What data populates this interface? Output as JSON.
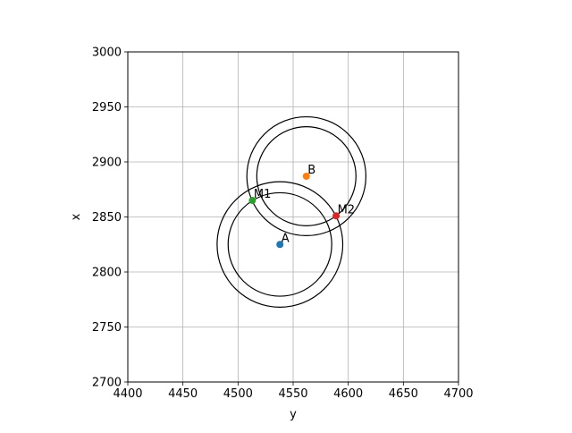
{
  "chart_data": {
    "type": "scatter",
    "title": "",
    "xlabel": "y",
    "ylabel": "x",
    "xlim": [
      4400,
      4700
    ],
    "ylim": [
      2700,
      3000
    ],
    "grid": true,
    "x_ticks": [
      4400,
      4450,
      4500,
      4550,
      4600,
      4650,
      4700
    ],
    "y_ticks": [
      2700,
      2750,
      2800,
      2850,
      2900,
      2950,
      3000
    ],
    "points": [
      {
        "label": "A",
        "x": 4538,
        "y": 2825,
        "color": "#1f77b4"
      },
      {
        "label": "B",
        "x": 4562,
        "y": 2887,
        "color": "#ff7f0e"
      },
      {
        "label": "M1",
        "x": 4513,
        "y": 2865,
        "color": "#2ca02c"
      },
      {
        "label": "M2",
        "x": 4589,
        "y": 2851,
        "color": "#d62728"
      }
    ],
    "circles": [
      {
        "center": "A",
        "cx": 4538,
        "cy": 2825,
        "r": 47
      },
      {
        "center": "A",
        "cx": 4538,
        "cy": 2825,
        "r": 57
      },
      {
        "center": "B",
        "cx": 4562,
        "cy": 2887,
        "r": 45
      },
      {
        "center": "B",
        "cx": 4562,
        "cy": 2887,
        "r": 54
      }
    ]
  }
}
